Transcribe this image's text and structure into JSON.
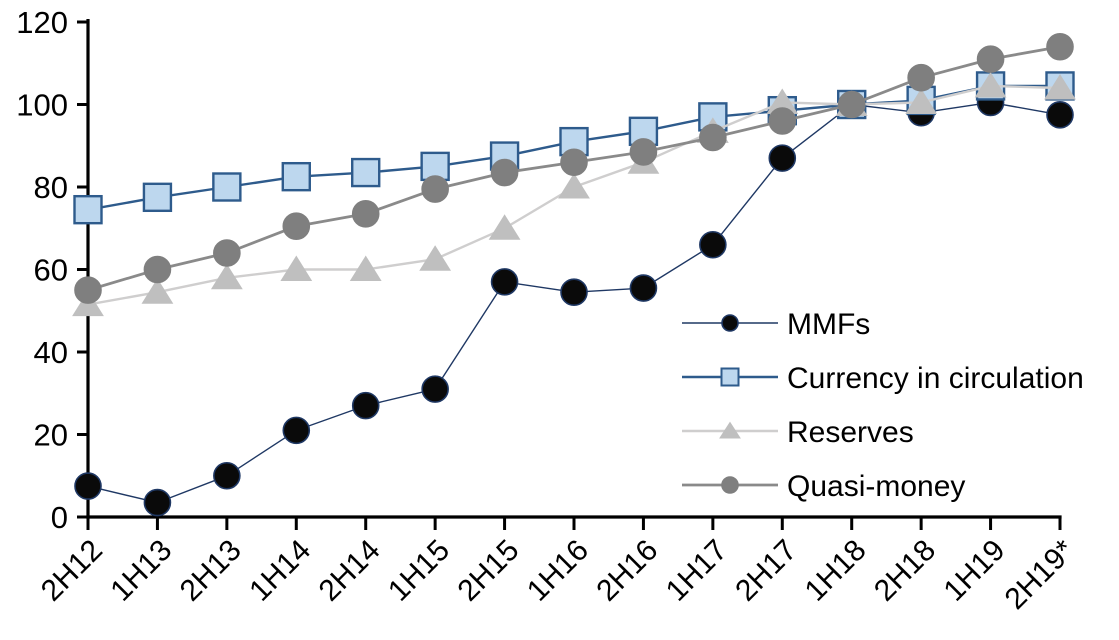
{
  "chart_data": {
    "type": "line",
    "title": "",
    "xlabel": "",
    "ylabel": "",
    "ylim": [
      0,
      120
    ],
    "yticks": [
      0,
      20,
      40,
      60,
      80,
      100,
      120
    ],
    "grid": false,
    "legend_position": "inside-right",
    "axis_color": "#000000",
    "background_color": "#ffffff",
    "categories": [
      "2H12",
      "1H13",
      "2H13",
      "1H14",
      "2H14",
      "1H15",
      "2H15",
      "1H16",
      "2H16",
      "1H17",
      "2H17",
      "1H18",
      "2H18",
      "1H19",
      "2H19*"
    ],
    "series": [
      {
        "name": "MMFs",
        "marker": "circle",
        "marker_fill": "#0a0a0a",
        "marker_edge": "#1f3864",
        "line_color": "#1f3864",
        "line_width": 1.4,
        "values": [
          7.5,
          3.5,
          10,
          21,
          27,
          31,
          57,
          54.5,
          55.5,
          66,
          87,
          100,
          98,
          100.5,
          97.5
        ]
      },
      {
        "name": "Currency in circulation",
        "marker": "square",
        "marker_fill": "#bdd7ee",
        "marker_edge": "#2e5b8c",
        "line_color": "#2e5b8c",
        "line_width": 2.4,
        "values": [
          74.5,
          77.5,
          80,
          82.5,
          83.5,
          85,
          87.5,
          91,
          93.5,
          97,
          98.5,
          100,
          101,
          104.5,
          104.5
        ]
      },
      {
        "name": "Reserves",
        "marker": "triangle",
        "marker_fill": "#bfbfbf",
        "marker_edge": "#bfbfbf",
        "line_color": "#cfcece",
        "line_width": 2.4,
        "values": [
          51.5,
          54.5,
          58,
          60,
          60,
          62.5,
          70,
          80,
          86,
          93.5,
          100.5,
          100,
          100.5,
          104.5,
          104
        ]
      },
      {
        "name": "Quasi-money",
        "marker": "circle",
        "marker_fill": "#7f7f7f",
        "marker_edge": "#7f7f7f",
        "line_color": "#8a8a8a",
        "line_width": 2.8,
        "values": [
          55,
          60,
          64,
          70.5,
          73.5,
          79.5,
          83.5,
          86,
          88.5,
          92,
          96,
          100,
          106.5,
          111,
          114
        ]
      }
    ]
  }
}
